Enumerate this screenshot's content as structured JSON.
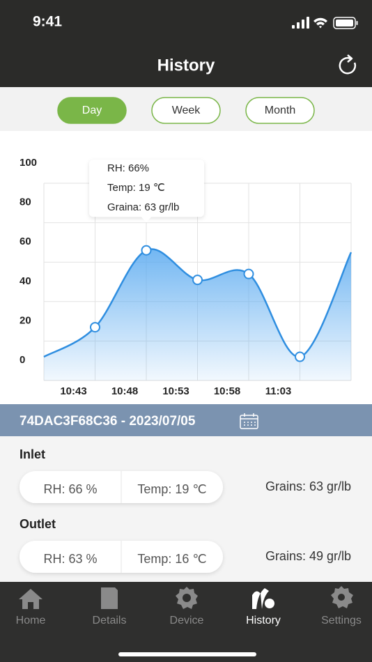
{
  "status_bar": {
    "time": "9:41"
  },
  "header": {
    "title": "History"
  },
  "tabs": [
    {
      "label": "Day",
      "active": true
    },
    {
      "label": "Week",
      "active": false
    },
    {
      "label": "Month",
      "active": false
    }
  ],
  "chart_data": {
    "type": "line",
    "categories": [
      null,
      "10:43",
      "10:48",
      "10:53",
      "10:58",
      "11:03",
      null
    ],
    "values": [
      12,
      27,
      66,
      51,
      54,
      12,
      65
    ],
    "color": "#2f8ee0",
    "ylim": [
      0,
      100
    ],
    "yticks": [
      0,
      20,
      40,
      60,
      80,
      100
    ],
    "grid": true,
    "tooltip_index": 2,
    "tooltip": [
      "RH: 66%",
      "Temp: 19 ℃",
      "Graina: 63 gr/lb"
    ]
  },
  "device": {
    "label": "74DAC3F68C36 - 2023/07/05"
  },
  "readings": [
    {
      "title": "Inlet",
      "rh": "RH: 66 %",
      "temp": "Temp: 19 ℃",
      "grains": "Grains: 63 gr/lb"
    },
    {
      "title": "Outlet",
      "rh": "RH: 63 %",
      "temp": "Temp: 16 ℃",
      "grains": "Grains: 49 gr/lb"
    }
  ],
  "tab_bar": [
    {
      "label": "Home",
      "active": false
    },
    {
      "label": "Details",
      "active": false
    },
    {
      "label": "Device",
      "active": false
    },
    {
      "label": "History",
      "active": true
    },
    {
      "label": "Settings",
      "active": false
    }
  ]
}
